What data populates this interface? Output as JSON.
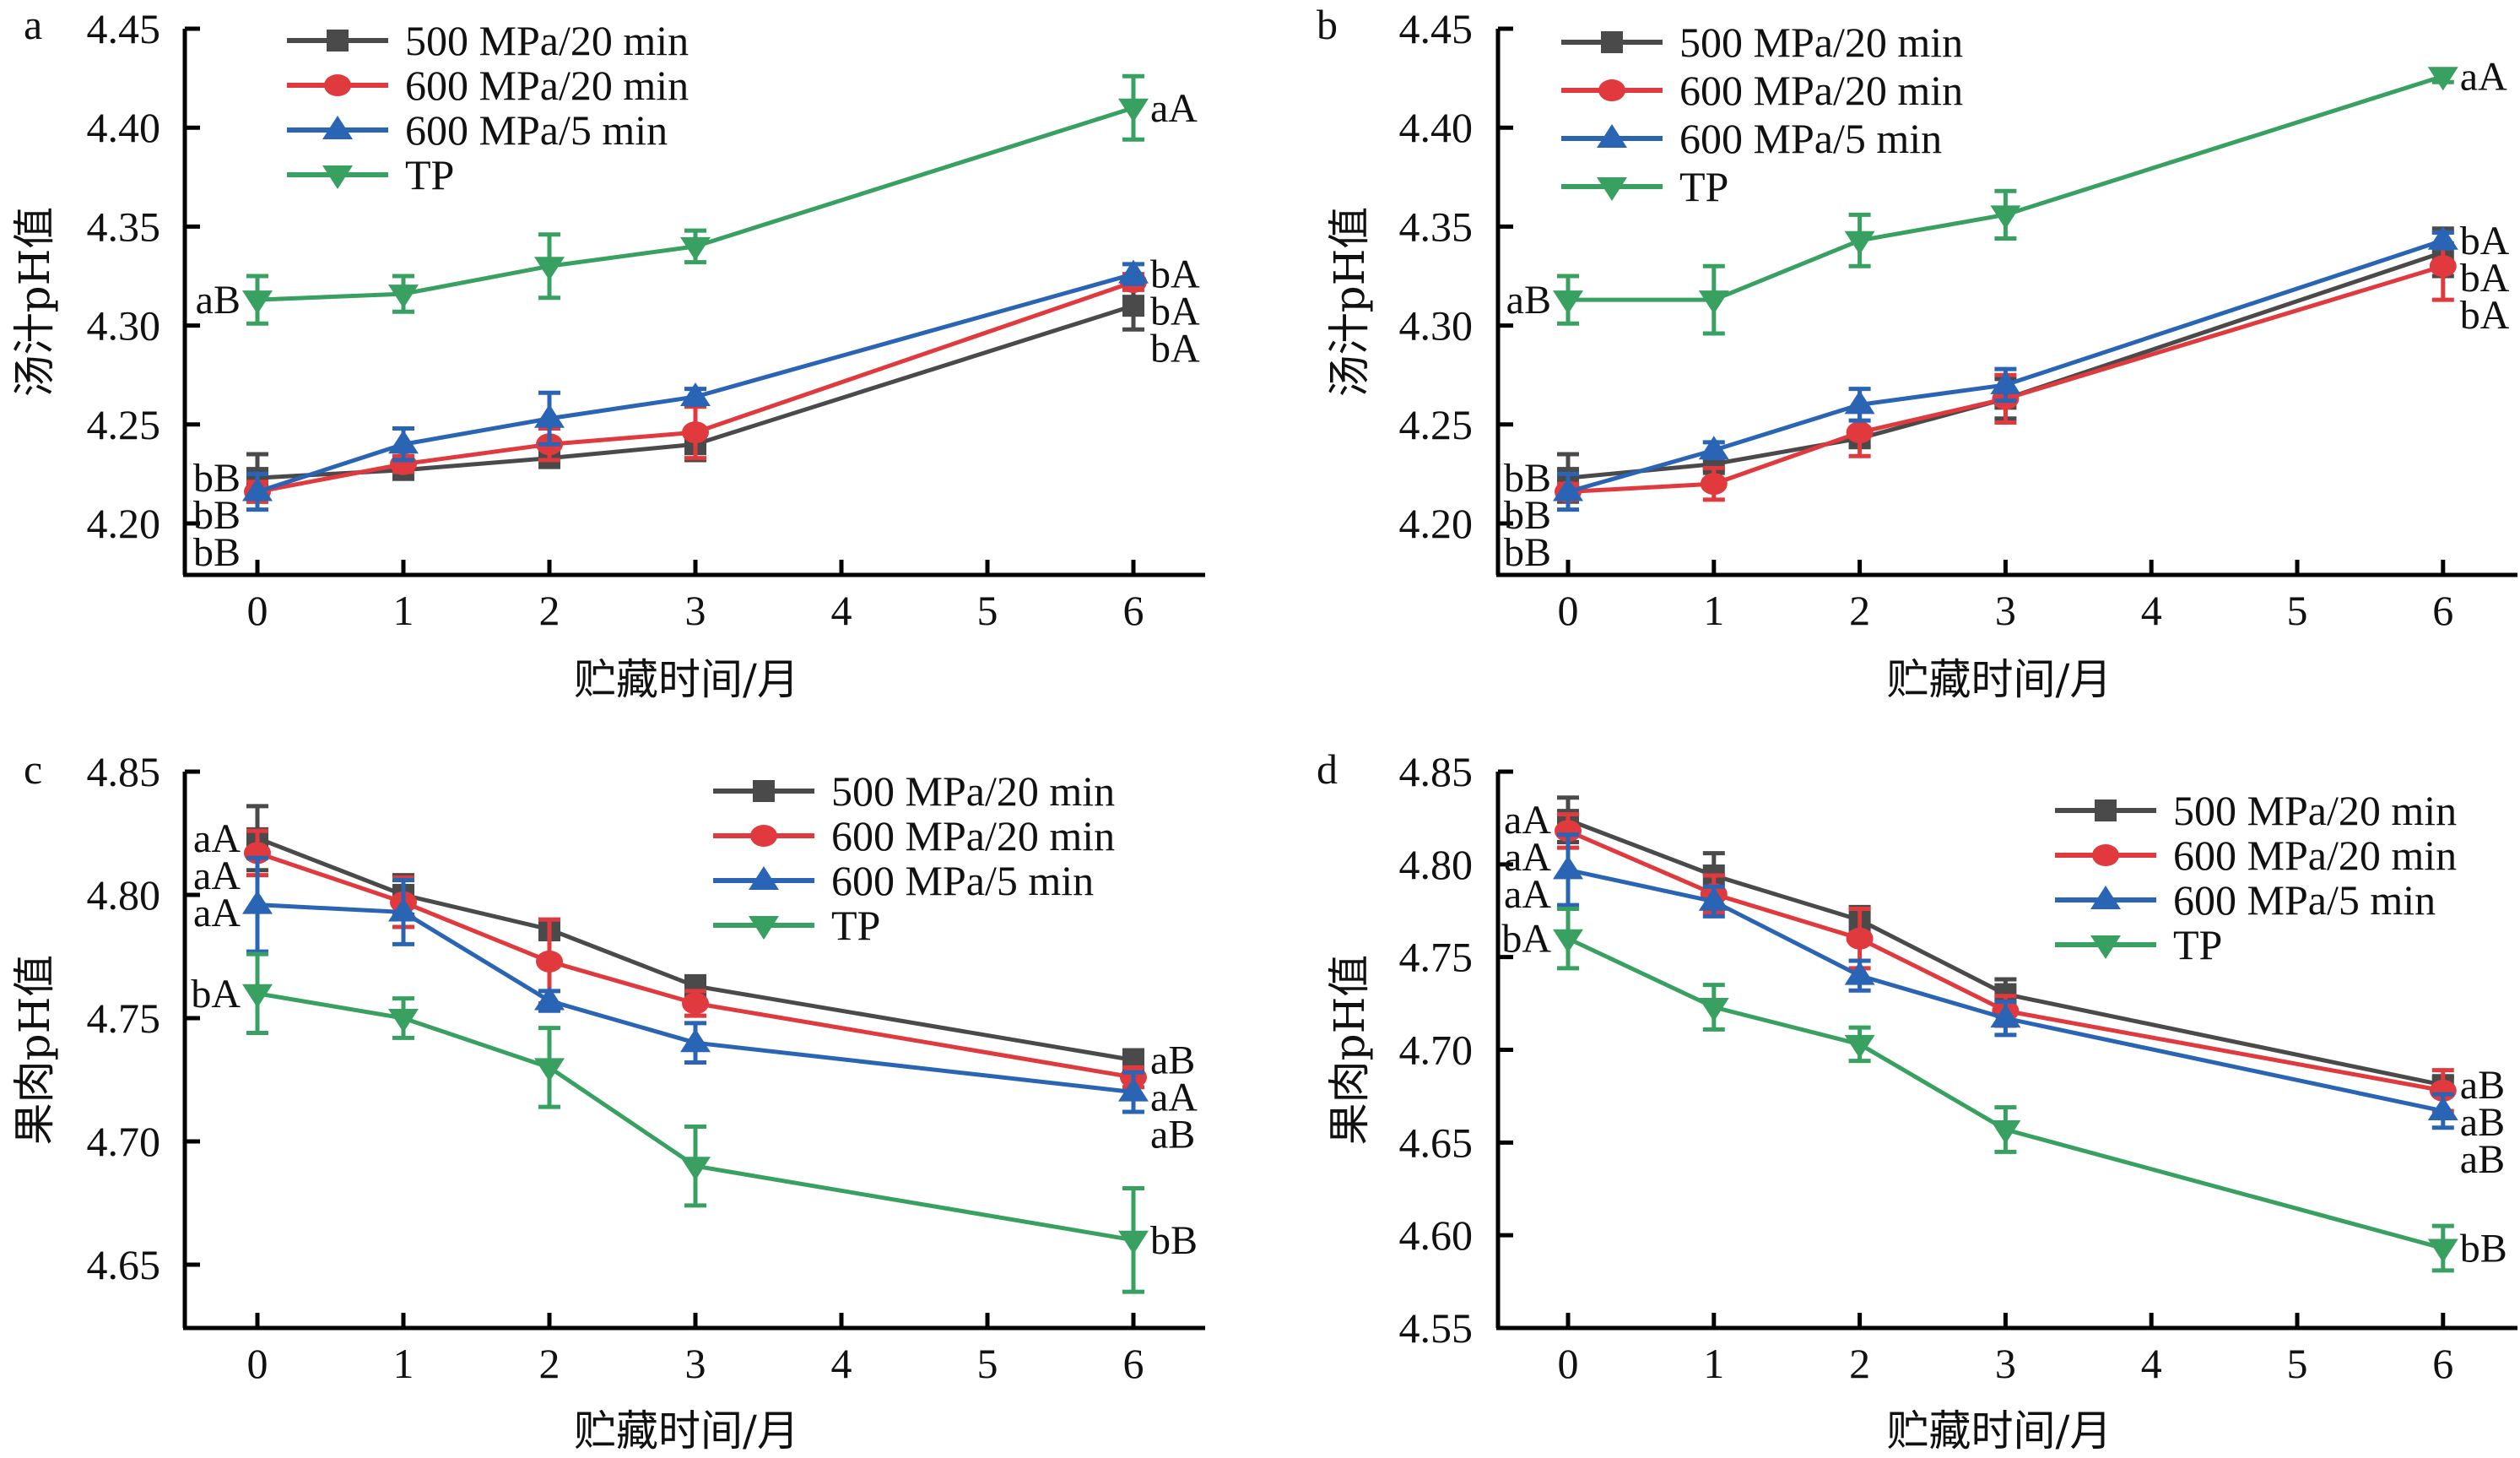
{
  "chart_data": [
    {
      "panel": "a",
      "type": "line",
      "title": "",
      "xlabel": "贮藏时间/月",
      "ylabel": "汤汁pH值",
      "x": [
        0,
        1,
        2,
        3,
        6
      ],
      "xticks": [
        "0",
        "1",
        "2",
        "3",
        "4",
        "5",
        "6"
      ],
      "xlim": [
        -0.5,
        6.5
      ],
      "ylim": [
        4.175,
        4.45
      ],
      "yticks": [
        "4.20",
        "4.25",
        "4.30",
        "4.35",
        "4.40",
        "4.45"
      ],
      "grid": false,
      "legend_position": "top-left",
      "series": [
        {
          "name": "500 MPa/20 min",
          "color": "#4a4a4a",
          "marker": "square",
          "values": [
            4.223,
            4.227,
            4.233,
            4.24,
            4.31
          ],
          "errors": [
            0.012,
            0.004,
            0.003,
            0.008,
            0.012
          ],
          "labels": {
            "start": "bB",
            "end": "bA"
          }
        },
        {
          "name": "600 MPa/20 min",
          "color": "#e0393e",
          "marker": "circle",
          "values": [
            4.216,
            4.23,
            4.24,
            4.246,
            4.322
          ],
          "errors": [
            0.005,
            0.004,
            0.008,
            0.013,
            0.004
          ],
          "labels": {
            "start": "bB",
            "end": "bA"
          }
        },
        {
          "name": "600 MPa/5 min",
          "color": "#2a64b4",
          "marker": "triangle-up",
          "values": [
            4.216,
            4.24,
            4.253,
            4.264,
            4.326
          ],
          "errors": [
            0.009,
            0.008,
            0.013,
            0.004,
            0.005
          ],
          "labels": {
            "start": "bB",
            "end": "bA"
          }
        },
        {
          "name": "TP",
          "color": "#38a060",
          "marker": "triangle-down",
          "values": [
            4.313,
            4.316,
            4.33,
            4.34,
            4.41
          ],
          "errors": [
            0.012,
            0.009,
            0.016,
            0.008,
            0.016
          ],
          "labels": {
            "start": "aB",
            "end": "aA"
          }
        }
      ]
    },
    {
      "panel": "b",
      "type": "line",
      "title": "",
      "xlabel": "贮藏时间/月",
      "ylabel": "汤汁pH值",
      "x": [
        0,
        1,
        2,
        3,
        6
      ],
      "xticks": [
        "0",
        "1",
        "2",
        "3",
        "4",
        "5",
        "6"
      ],
      "xlim": [
        -0.5,
        6.5
      ],
      "ylim": [
        4.175,
        4.45
      ],
      "yticks": [
        "4.20",
        "4.25",
        "4.30",
        "4.35",
        "4.40",
        "4.45"
      ],
      "grid": false,
      "legend_position": "top-left",
      "series": [
        {
          "name": "500 MPa/20 min",
          "color": "#4a4a4a",
          "marker": "square",
          "values": [
            4.223,
            4.23,
            4.243,
            4.263,
            4.337
          ],
          "errors": [
            0.012,
            0.003,
            0.004,
            0.01,
            0.012
          ],
          "labels": {
            "start": "bB",
            "end": "bA"
          }
        },
        {
          "name": "600 MPa/20 min",
          "color": "#e0393e",
          "marker": "circle",
          "values": [
            4.216,
            4.22,
            4.246,
            4.263,
            4.33
          ],
          "errors": [
            0.004,
            0.008,
            0.012,
            0.012,
            0.017
          ],
          "labels": {
            "start": "bB",
            "end": "bA"
          }
        },
        {
          "name": "600 MPa/5 min",
          "color": "#2a64b4",
          "marker": "triangle-up",
          "values": [
            4.216,
            4.237,
            4.26,
            4.27,
            4.343
          ],
          "errors": [
            0.009,
            0.004,
            0.008,
            0.008,
            0.004
          ],
          "labels": {
            "start": "bB",
            "end": "bA"
          }
        },
        {
          "name": "TP",
          "color": "#38a060",
          "marker": "triangle-down",
          "values": [
            4.313,
            4.313,
            4.343,
            4.356,
            4.426
          ],
          "errors": [
            0.012,
            0.017,
            0.013,
            0.012,
            0.003
          ],
          "labels": {
            "start": "aB",
            "end": "aA"
          }
        }
      ]
    },
    {
      "panel": "c",
      "type": "line",
      "title": "",
      "xlabel": "贮藏时间/月",
      "ylabel": "果肉pH值",
      "x": [
        0,
        1,
        2,
        3,
        6
      ],
      "xticks": [
        "0",
        "1",
        "2",
        "3",
        "4",
        "5",
        "6"
      ],
      "xlim": [
        -0.5,
        6.5
      ],
      "ylim": [
        4.625,
        4.85
      ],
      "yticks": [
        "4.65",
        "4.70",
        "4.75",
        "4.80",
        "4.85"
      ],
      "grid": false,
      "legend_position": "top-right",
      "series": [
        {
          "name": "500 MPa/20 min",
          "color": "#4a4a4a",
          "marker": "square",
          "values": [
            4.823,
            4.8,
            4.786,
            4.763,
            4.733
          ],
          "errors": [
            0.013,
            0.008,
            0.004,
            0.004,
            0.004
          ],
          "labels": {
            "start": "aA",
            "end": "aB"
          }
        },
        {
          "name": "600 MPa/20 min",
          "color": "#e0393e",
          "marker": "circle",
          "values": [
            4.817,
            4.797,
            4.773,
            4.756,
            4.726
          ],
          "errors": [
            0.009,
            0.01,
            0.017,
            0.005,
            0.004
          ],
          "labels": {
            "start": "aA",
            "end": "aA"
          }
        },
        {
          "name": "600 MPa/5 min",
          "color": "#2a64b4",
          "marker": "triangle-up",
          "values": [
            4.796,
            4.793,
            4.757,
            4.74,
            4.72
          ],
          "errors": [
            0.019,
            0.013,
            0.004,
            0.008,
            0.008
          ],
          "labels": {
            "start": "aA",
            "end": "aB"
          }
        },
        {
          "name": "TP",
          "color": "#38a060",
          "marker": "triangle-down",
          "values": [
            4.76,
            4.75,
            4.73,
            4.69,
            4.66
          ],
          "errors": [
            0.016,
            0.008,
            0.016,
            0.016,
            0.021
          ],
          "labels": {
            "start": "bA",
            "end": "bB"
          }
        }
      ]
    },
    {
      "panel": "d",
      "type": "line",
      "title": "",
      "xlabel": "贮藏时间/月",
      "ylabel": "果肉pH值",
      "x": [
        0,
        1,
        2,
        3,
        6
      ],
      "xticks": [
        "0",
        "1",
        "2",
        "3",
        "4",
        "5",
        "6"
      ],
      "xlim": [
        -0.5,
        6.5
      ],
      "ylim": [
        4.55,
        4.85
      ],
      "yticks": [
        "4.55",
        "4.60",
        "4.65",
        "4.70",
        "4.75",
        "4.80",
        "4.85"
      ],
      "grid": false,
      "legend_position": "top-right",
      "series": [
        {
          "name": "500 MPa/20 min",
          "color": "#4a4a4a",
          "marker": "square",
          "values": [
            4.824,
            4.794,
            4.77,
            4.73,
            4.681
          ],
          "errors": [
            0.012,
            0.012,
            0.007,
            0.008,
            0.004
          ],
          "labels": {
            "start": "aA",
            "end": "aB"
          }
        },
        {
          "name": "600 MPa/20 min",
          "color": "#e0393e",
          "marker": "circle",
          "values": [
            4.818,
            4.784,
            4.76,
            4.721,
            4.678
          ],
          "errors": [
            0.009,
            0.01,
            0.016,
            0.008,
            0.011
          ],
          "labels": {
            "start": "aA",
            "end": "aB"
          }
        },
        {
          "name": "600 MPa/5 min",
          "color": "#2a64b4",
          "marker": "triangle-up",
          "values": [
            4.797,
            4.78,
            4.74,
            4.717,
            4.667
          ],
          "errors": [
            0.019,
            0.008,
            0.008,
            0.009,
            0.009
          ],
          "labels": {
            "start": "aA",
            "end": "aB"
          }
        },
        {
          "name": "TP",
          "color": "#38a060",
          "marker": "triangle-down",
          "values": [
            4.76,
            4.723,
            4.703,
            4.657,
            4.593
          ],
          "errors": [
            0.016,
            0.012,
            0.009,
            0.012,
            0.012
          ],
          "labels": {
            "start": "bA",
            "end": "bB"
          }
        }
      ]
    }
  ]
}
